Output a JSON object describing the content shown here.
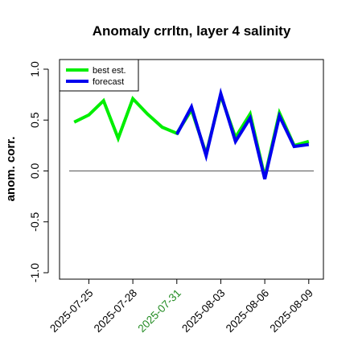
{
  "chart_data": {
    "type": "line",
    "title": "Anomaly crrltn, layer 4 salinity",
    "xlabel": "",
    "ylabel": "anom. corr.",
    "ylim": [
      -1.0,
      1.0
    ],
    "yticks": [
      -1.0,
      -0.5,
      0.0,
      0.5,
      1.0
    ],
    "ytick_labels": [
      "-1.0",
      "-0.5",
      "0.0",
      "0.5",
      "1.0"
    ],
    "xlim": [
      "2025-07-23",
      "2025-08-10"
    ],
    "xticks": [
      "2025-07-25",
      "2025-07-28",
      "2025-07-31",
      "2025-08-03",
      "2025-08-06",
      "2025-08-09"
    ],
    "highlighted_xtick": "2025-07-31",
    "highlight_color": "#228b22",
    "reference_line_y": 0.0,
    "grid": false,
    "legend_position": "top-left",
    "series": [
      {
        "name": "best est.",
        "color": "#00ee00",
        "x": [
          "2025-07-24",
          "2025-07-25",
          "2025-07-26",
          "2025-07-27",
          "2025-07-28",
          "2025-07-29",
          "2025-07-30",
          "2025-07-31",
          "2025-08-01",
          "2025-08-02",
          "2025-08-03",
          "2025-08-04",
          "2025-08-05",
          "2025-08-06",
          "2025-08-07",
          "2025-08-08",
          "2025-08-09"
        ],
        "values": [
          0.48,
          0.55,
          0.69,
          0.32,
          0.71,
          0.56,
          0.43,
          0.37,
          0.6,
          0.17,
          0.74,
          0.33,
          0.56,
          -0.06,
          0.57,
          0.25,
          0.29
        ]
      },
      {
        "name": "forecast",
        "color": "#0000ee",
        "x": [
          "2025-07-31",
          "2025-08-01",
          "2025-08-02",
          "2025-08-03",
          "2025-08-04",
          "2025-08-05",
          "2025-08-06",
          "2025-08-07",
          "2025-08-08",
          "2025-08-09"
        ],
        "values": [
          0.36,
          0.63,
          0.15,
          0.76,
          0.29,
          0.52,
          -0.08,
          0.54,
          0.24,
          0.26
        ]
      }
    ]
  }
}
